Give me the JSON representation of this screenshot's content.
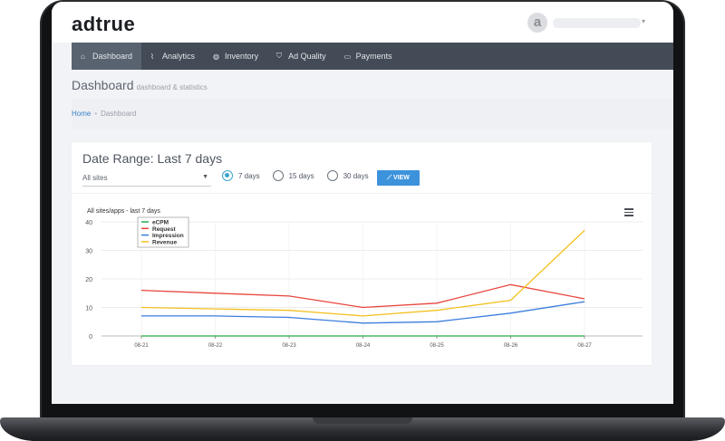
{
  "app": {
    "logo": "adtrue",
    "avatar_letter": "a"
  },
  "nav": {
    "items": [
      {
        "label": "Dashboard",
        "icon": "home-icon",
        "glyph": "⌂",
        "active": true
      },
      {
        "label": "Analytics",
        "icon": "chart-icon",
        "glyph": "⌇",
        "active": false
      },
      {
        "label": "Inventory",
        "icon": "globe-icon",
        "glyph": "◍",
        "active": false
      },
      {
        "label": "Ad Quality",
        "icon": "shield-icon",
        "glyph": "⛉",
        "active": false
      },
      {
        "label": "Payments",
        "icon": "card-icon",
        "glyph": "▭",
        "active": false
      }
    ]
  },
  "page": {
    "title": "Dashboard",
    "subtitle": "dashboard & statistics"
  },
  "breadcrumb": {
    "home": "Home",
    "current": "Dashboard"
  },
  "filters": {
    "title": "Date Range: Last 7 days",
    "site_select": "All sites",
    "ranges": [
      {
        "label": "7 days",
        "checked": true
      },
      {
        "label": "15 days",
        "checked": false
      },
      {
        "label": "30 days",
        "checked": false
      }
    ],
    "view_label": "VIEW",
    "accent": "#3d92dc"
  },
  "chart_data": {
    "type": "line",
    "title": "All sites/apps - last 7 days",
    "categories": [
      "08-21",
      "08-22",
      "08-23",
      "08-24",
      "08-25",
      "08-26",
      "08-27"
    ],
    "ylim": [
      0,
      40
    ],
    "yticks": [
      0,
      10,
      20,
      30,
      40
    ],
    "grid": true,
    "legend": "top-left",
    "series": [
      {
        "name": "eCPM",
        "color": "#2aa84a",
        "values": [
          0,
          0,
          0,
          0,
          0,
          0,
          0
        ]
      },
      {
        "name": "Request",
        "color": "#e8453c",
        "values": [
          16,
          15,
          14,
          10,
          11.5,
          18,
          13
        ]
      },
      {
        "name": "Impression",
        "color": "#3b7ddd",
        "values": [
          7,
          7,
          6.5,
          4.5,
          5,
          8,
          12
        ]
      },
      {
        "name": "Revenue",
        "color": "#f4c020",
        "values": [
          10,
          9.5,
          9,
          7,
          9,
          12.5,
          37
        ]
      }
    ]
  }
}
